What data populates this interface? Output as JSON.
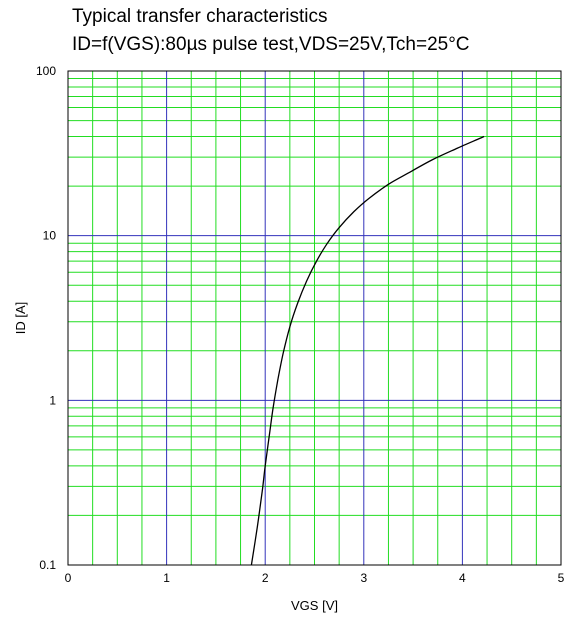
{
  "chart_data": {
    "type": "line",
    "title": "Typical transfer characteristics",
    "subtitle": "ID=f(VGS):80µs pulse test,VDS=25V,Tch=25°C",
    "xlabel": "VGS [V]",
    "ylabel": "ID [A]",
    "xlim": [
      0,
      5
    ],
    "ylim": [
      0.1,
      100
    ],
    "y_scale": "log",
    "x_ticks": [
      "0",
      "1",
      "2",
      "3",
      "4",
      "5"
    ],
    "y_ticks": [
      "0.1",
      "1",
      "10",
      "100"
    ],
    "grid": true,
    "colors": {
      "minor_grid": "#22dd22",
      "major_grid": "#3333bb",
      "curve": "#000000"
    },
    "series": [
      {
        "x": [
          1.86,
          1.92,
          1.97,
          2.0,
          2.04,
          2.08,
          2.13,
          2.18,
          2.25,
          2.33,
          2.42,
          2.52,
          2.62,
          2.75,
          2.9,
          3.05,
          3.25,
          3.45,
          3.7,
          3.95,
          4.22
        ],
        "y": [
          0.1,
          0.17,
          0.28,
          0.4,
          0.6,
          0.9,
          1.35,
          1.9,
          2.8,
          3.9,
          5.3,
          7.0,
          8.8,
          11.2,
          14.0,
          16.8,
          20.5,
          24.0,
          29.0,
          34.0,
          40.0
        ]
      }
    ]
  }
}
